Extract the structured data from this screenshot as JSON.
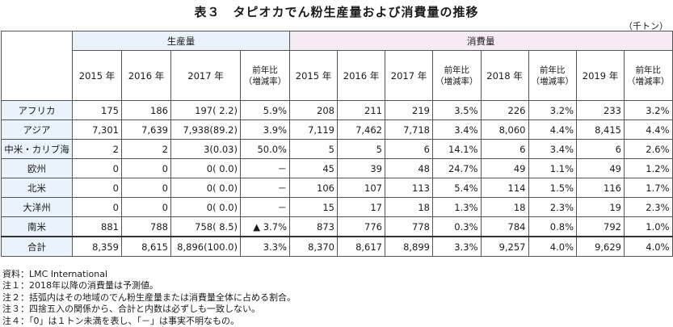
{
  "title": "表３　タピオカでん粉生産量および消費量の推移",
  "unit": "（千トン）",
  "header": {
    "production": "生産量",
    "consumption": "消費量",
    "production_years": [
      "2015 年",
      "2016 年",
      "2017 年"
    ],
    "ratio_top": "前年比",
    "ratio_bottom": "（増減率）",
    "consumption_years": [
      "2015 年",
      "2016 年",
      "2017 年",
      "2018 年",
      "2019 年"
    ]
  },
  "rows": [
    {
      "region": "アフリカ",
      "p2015": "175",
      "p2016": "186",
      "p2017": "197(  2.2)",
      "pr": "5.9%",
      "c2015": "208",
      "c2016": "211",
      "c2017": "219",
      "c2017r": "3.5%",
      "c2018": "226",
      "c2018r": "3.2%",
      "c2019": "233",
      "c2019r": "3.2%"
    },
    {
      "region": "アジア",
      "p2015": "7,301",
      "p2016": "7,639",
      "p2017": "7,938(89.2)",
      "pr": "3.9%",
      "c2015": "7,119",
      "c2016": "7,462",
      "c2017": "7,718",
      "c2017r": "3.4%",
      "c2018": "8,060",
      "c2018r": "4.4%",
      "c2019": "8,415",
      "c2019r": "4.4%"
    },
    {
      "region": "中米・カリブ海",
      "p2015": "2",
      "p2016": "2",
      "p2017": "3(0.03)",
      "pr": "50.0%",
      "c2015": "5",
      "c2016": "5",
      "c2017": "6",
      "c2017r": "14.1%",
      "c2018": "6",
      "c2018r": "3.4%",
      "c2019": "6",
      "c2019r": "2.6%"
    },
    {
      "region": "欧州",
      "p2015": "0",
      "p2016": "0",
      "p2017": "0(  0.0)",
      "pr": "－",
      "c2015": "45",
      "c2016": "39",
      "c2017": "48",
      "c2017r": "24.7%",
      "c2018": "49",
      "c2018r": "1.1%",
      "c2019": "49",
      "c2019r": "1.2%"
    },
    {
      "region": "北米",
      "p2015": "0",
      "p2016": "0",
      "p2017": "0(  0.0)",
      "pr": "－",
      "c2015": "106",
      "c2016": "107",
      "c2017": "113",
      "c2017r": "5.4%",
      "c2018": "114",
      "c2018r": "1.5%",
      "c2019": "116",
      "c2019r": "1.7%"
    },
    {
      "region": "大洋州",
      "p2015": "0",
      "p2016": "0",
      "p2017": "0(  0.0)",
      "pr": "－",
      "c2015": "15",
      "c2016": "17",
      "c2017": "18",
      "c2017r": "1.3%",
      "c2018": "18",
      "c2018r": "2.3%",
      "c2019": "19",
      "c2019r": "2.3%"
    },
    {
      "region": "南米",
      "p2015": "881",
      "p2016": "788",
      "p2017": "758(  8.5)",
      "pr": "▲ 3.7%",
      "c2015": "873",
      "c2016": "776",
      "c2017": "778",
      "c2017r": "0.3%",
      "c2018": "784",
      "c2018r": "0.8%",
      "c2019": "792",
      "c2019r": "1.0%"
    }
  ],
  "total": {
    "region": "合計",
    "p2015": "8,359",
    "p2016": "8,615",
    "p2017": "8,896(100.0)",
    "pr": "3.3%",
    "c2015": "8,370",
    "c2016": "8,617",
    "c2017": "8,899",
    "c2017r": "3.3%",
    "c2018": "9,257",
    "c2018r": "4.0%",
    "c2019": "9,629",
    "c2019r": "4.0%"
  },
  "notes": [
    "資料：LMC International",
    "注１：2018年以降の消費量は予測値。",
    "注２：括弧内はその地域のでん粉生産量または消費量全体に占める割合。",
    "注３：四捨五入の関係から、合計と内数は必ずしも一致しない。",
    "注４：「0」は１トン未満を表し、「－」は事実不明なもの。"
  ]
}
